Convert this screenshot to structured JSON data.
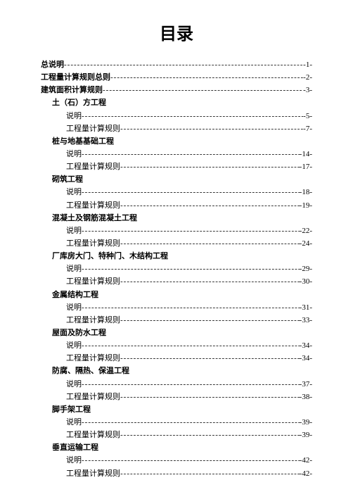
{
  "title": "目录",
  "leader_char": "-",
  "entries": [
    {
      "label": "总说明",
      "page": "-1-",
      "indent": 0,
      "bold": true,
      "leaders": true
    },
    {
      "label": "工程量计算规则总则",
      "page": "-2-",
      "indent": 0,
      "bold": true,
      "leaders": true
    },
    {
      "label": "建筑面积计算规则",
      "page": "-3-",
      "indent": 0,
      "bold": true,
      "leaders": true
    },
    {
      "label": "土（石）方工程",
      "page": "",
      "indent": 1,
      "bold": true,
      "leaders": false
    },
    {
      "label": "说明",
      "page": "-5-",
      "indent": 2,
      "bold": false,
      "leaders": true
    },
    {
      "label": "工程量计算规则",
      "page": "-7-",
      "indent": 2,
      "bold": false,
      "leaders": true
    },
    {
      "label": "桩与地基基础工程",
      "page": "",
      "indent": 1,
      "bold": true,
      "leaders": false
    },
    {
      "label": "说明",
      "page": "-14-",
      "indent": 2,
      "bold": false,
      "leaders": true
    },
    {
      "label": "工程量计算规则",
      "page": "-17-",
      "indent": 2,
      "bold": false,
      "leaders": true
    },
    {
      "label": "砌筑工程",
      "page": "",
      "indent": 1,
      "bold": true,
      "leaders": false
    },
    {
      "label": "说明",
      "page": "-18-",
      "indent": 2,
      "bold": false,
      "leaders": true
    },
    {
      "label": "工程量计算规则",
      "page": "-19-",
      "indent": 2,
      "bold": false,
      "leaders": true
    },
    {
      "label": "混凝土及钢筋混凝土工程",
      "page": "",
      "indent": 1,
      "bold": true,
      "leaders": false
    },
    {
      "label": "说明",
      "page": "-22-",
      "indent": 2,
      "bold": false,
      "leaders": true
    },
    {
      "label": "工程量计算规则",
      "page": "-24-",
      "indent": 2,
      "bold": false,
      "leaders": true
    },
    {
      "label": "厂库房大门、特种门、木结构工程",
      "page": "",
      "indent": 1,
      "bold": true,
      "leaders": false
    },
    {
      "label": "说明",
      "page": "-29-",
      "indent": 2,
      "bold": false,
      "leaders": true
    },
    {
      "label": "工程量计算规则",
      "page": "-30-",
      "indent": 2,
      "bold": false,
      "leaders": true
    },
    {
      "label": "金属结构工程",
      "page": "",
      "indent": 1,
      "bold": true,
      "leaders": false
    },
    {
      "label": "说明",
      "page": "-31-",
      "indent": 2,
      "bold": false,
      "leaders": true
    },
    {
      "label": "工程量计算规则",
      "page": "-33-",
      "indent": 2,
      "bold": false,
      "leaders": true
    },
    {
      "label": "屋面及防水工程",
      "page": "",
      "indent": 1,
      "bold": true,
      "leaders": false
    },
    {
      "label": "说明",
      "page": "-34-",
      "indent": 2,
      "bold": false,
      "leaders": true
    },
    {
      "label": "工程量计算规则",
      "page": "-34-",
      "indent": 2,
      "bold": false,
      "leaders": true
    },
    {
      "label": "防腐、隔热、保温工程",
      "page": "",
      "indent": 1,
      "bold": true,
      "leaders": false
    },
    {
      "label": "说明",
      "page": "-37-",
      "indent": 2,
      "bold": false,
      "leaders": true
    },
    {
      "label": "工程量计算规则",
      "page": "-38-",
      "indent": 2,
      "bold": false,
      "leaders": true
    },
    {
      "label": "脚手架工程",
      "page": "",
      "indent": 1,
      "bold": true,
      "leaders": false
    },
    {
      "label": "说明",
      "page": "-39-",
      "indent": 2,
      "bold": false,
      "leaders": true
    },
    {
      "label": "工程量计算规则",
      "page": "-39-",
      "indent": 2,
      "bold": false,
      "leaders": true
    },
    {
      "label": "垂直运输工程",
      "page": "",
      "indent": 1,
      "bold": true,
      "leaders": false
    },
    {
      "label": "说明",
      "page": "-42-",
      "indent": 2,
      "bold": false,
      "leaders": true
    },
    {
      "label": "工程量计算规则",
      "page": "-42-",
      "indent": 2,
      "bold": false,
      "leaders": true
    }
  ]
}
